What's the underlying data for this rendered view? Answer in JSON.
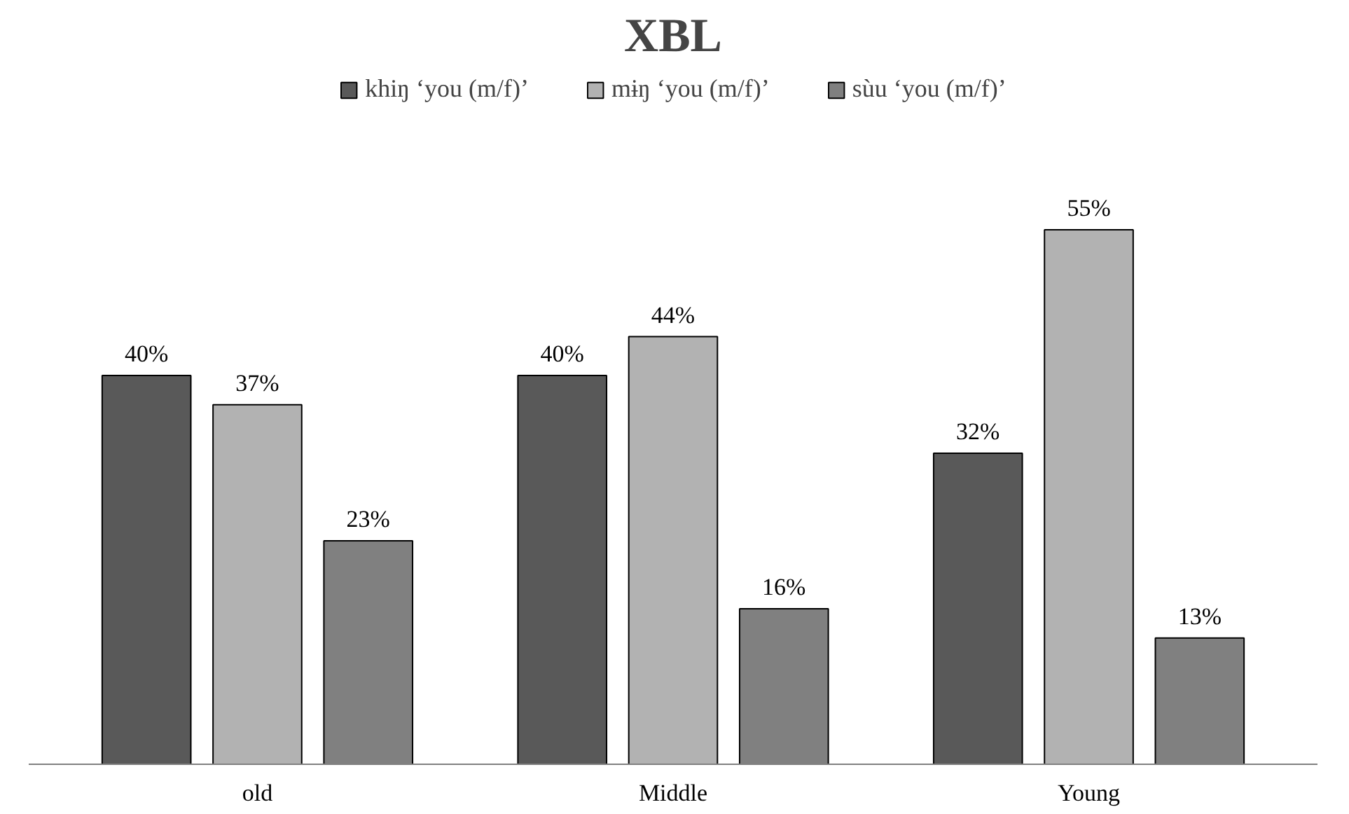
{
  "chart_data": {
    "type": "bar",
    "title": "XBL",
    "categories": [
      "old",
      "Middle",
      "Young"
    ],
    "series": [
      {
        "name": "khiŋ ‘you (m/f)’",
        "color": "#595959",
        "values": [
          40,
          40,
          32
        ],
        "value_labels": [
          "40%",
          "40%",
          "32%"
        ]
      },
      {
        "name": "mɨŋ ‘you (m/f)’",
        "color": "#b2b2b2",
        "values": [
          37,
          44,
          55
        ],
        "value_labels": [
          "37%",
          "44%",
          "55%"
        ]
      },
      {
        "name": "sùu ‘you (m/f)’",
        "color": "#808080",
        "values": [
          23,
          16,
          13
        ],
        "value_labels": [
          "23%",
          "16%",
          "13%"
        ]
      }
    ],
    "legend": "top",
    "tick_labels": "x"
  }
}
